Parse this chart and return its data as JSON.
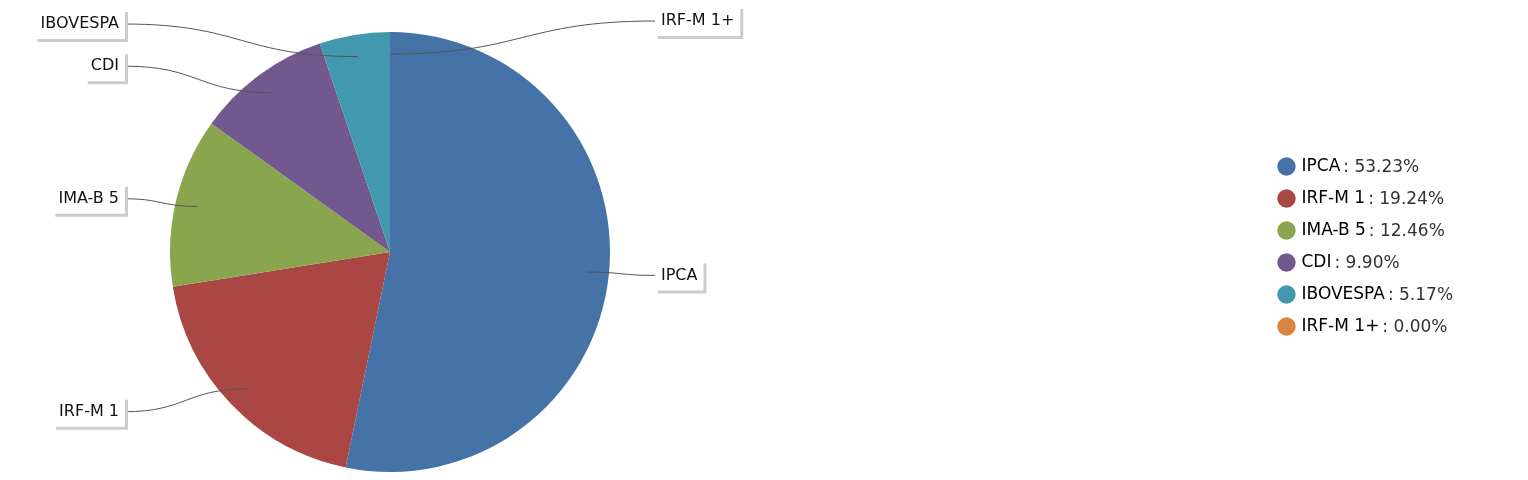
{
  "chart_data": {
    "type": "pie",
    "categories": [
      "IPCA",
      "IRF-M 1",
      "IMA-B 5",
      "CDI",
      "IBOVESPA",
      "IRF-M 1+"
    ],
    "values": [
      53.23,
      19.24,
      12.46,
      9.9,
      5.17,
      0
    ],
    "colors": [
      "#4572a7",
      "#aa4643",
      "#89a54e",
      "#71588f",
      "#4198af",
      "#db843d"
    ],
    "value_labels": [
      ": 53.23%",
      ": 19.24%",
      ": 12.46%",
      ": 9.90%",
      ": 5.17%",
      ": 0.00%"
    ],
    "legend": "right"
  }
}
